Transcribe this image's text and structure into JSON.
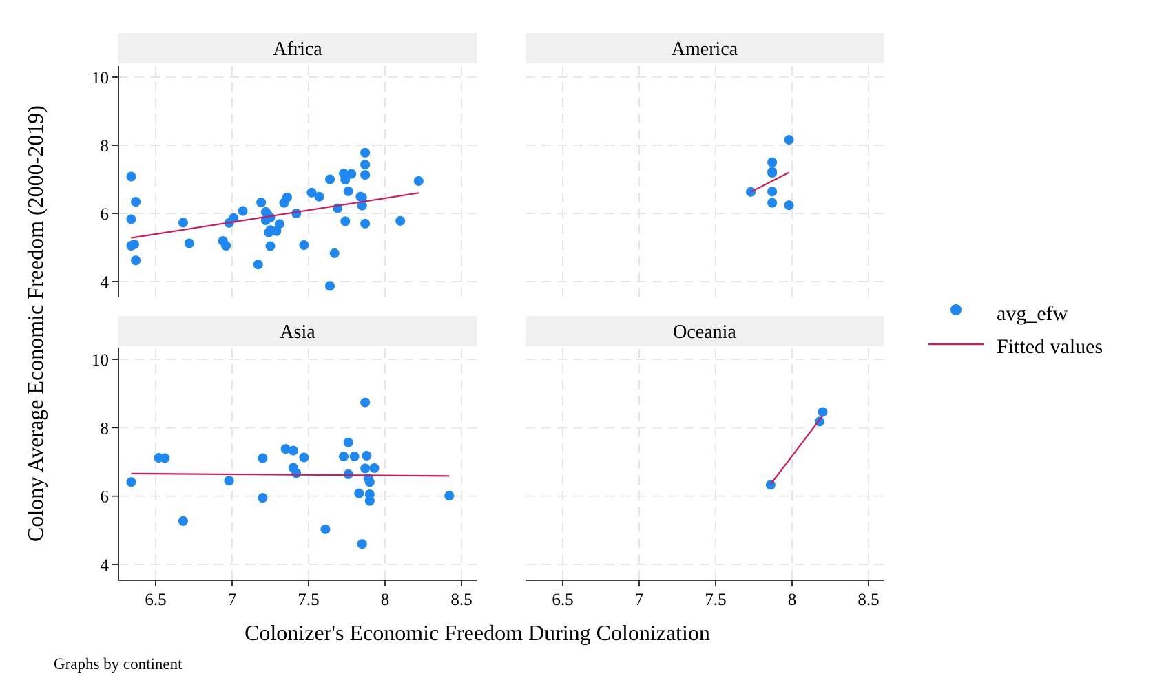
{
  "figure": {
    "xlabel": "Colonizer's Economic Freedom During Colonization",
    "ylabel": "Colony Average Economic Freedom (2000-2019)",
    "note": "Graphs by continent"
  },
  "colors": {
    "points": "#1e88f0",
    "fit": "#d0195a",
    "strip": "#f0f0f0",
    "grid": "#e6e6e6"
  },
  "chart_data": {
    "type": "scatter",
    "x_ticks": [
      6.5,
      7,
      7.5,
      8,
      8.5
    ],
    "x_tick_labels": [
      "6.5",
      "7",
      "7.5",
      "8",
      "8.5"
    ],
    "y_ticks": [
      4,
      6,
      8,
      10
    ],
    "y_tick_labels": [
      "4",
      "6",
      "8",
      "10"
    ],
    "xlim": [
      6.25,
      8.6
    ],
    "ylim": [
      3.5,
      10.4
    ],
    "legend": {
      "position": "right",
      "entries": [
        "avg_efw",
        "Fitted values"
      ]
    },
    "grid": true,
    "panels": [
      {
        "title": "Africa",
        "points": [
          [
            6.34,
            7.08
          ],
          [
            6.34,
            5.83
          ],
          [
            6.37,
            6.34
          ],
          [
            6.34,
            5.05
          ],
          [
            6.36,
            5.09
          ],
          [
            6.37,
            4.62
          ],
          [
            6.68,
            5.73
          ],
          [
            6.72,
            5.12
          ],
          [
            6.94,
            5.19
          ],
          [
            6.96,
            5.05
          ],
          [
            6.98,
            5.72
          ],
          [
            7.01,
            5.86
          ],
          [
            7.07,
            6.07
          ],
          [
            7.17,
            4.5
          ],
          [
            7.19,
            6.32
          ],
          [
            7.22,
            6.04
          ],
          [
            7.22,
            5.8
          ],
          [
            7.23,
            5.98
          ],
          [
            7.24,
            5.44
          ],
          [
            7.25,
            5.51
          ],
          [
            7.25,
            5.04
          ],
          [
            7.25,
            5.88
          ],
          [
            7.29,
            5.48
          ],
          [
            7.31,
            5.69
          ],
          [
            7.34,
            6.31
          ],
          [
            7.36,
            6.47
          ],
          [
            7.42,
            6.0
          ],
          [
            7.47,
            5.07
          ],
          [
            7.52,
            6.61
          ],
          [
            7.57,
            6.49
          ],
          [
            7.64,
            7.0
          ],
          [
            7.64,
            3.87
          ],
          [
            7.67,
            4.83
          ],
          [
            7.69,
            6.15
          ],
          [
            7.73,
            7.17
          ],
          [
            7.74,
            6.99
          ],
          [
            7.74,
            5.77
          ],
          [
            7.76,
            6.65
          ],
          [
            7.78,
            7.16
          ],
          [
            7.84,
            6.49
          ],
          [
            7.85,
            6.47
          ],
          [
            7.85,
            6.23
          ],
          [
            7.87,
            7.78
          ],
          [
            7.87,
            7.43
          ],
          [
            7.87,
            7.13
          ],
          [
            7.87,
            5.7
          ],
          [
            8.1,
            5.78
          ],
          [
            8.22,
            6.95
          ]
        ],
        "fit": {
          "x": [
            6.34,
            8.22
          ],
          "y": [
            5.28,
            6.6
          ]
        }
      },
      {
        "title": "America",
        "points": [
          [
            7.73,
            6.63
          ],
          [
            7.87,
            7.5
          ],
          [
            7.87,
            7.22
          ],
          [
            7.87,
            7.19
          ],
          [
            7.87,
            6.64
          ],
          [
            7.87,
            6.31
          ],
          [
            7.98,
            8.16
          ],
          [
            7.98,
            6.24
          ]
        ],
        "fit": {
          "x": [
            7.73,
            7.98
          ],
          "y": [
            6.63,
            7.2
          ]
        }
      },
      {
        "title": "Asia",
        "points": [
          [
            6.34,
            6.41
          ],
          [
            6.52,
            7.12
          ],
          [
            6.56,
            7.11
          ],
          [
            6.68,
            5.27
          ],
          [
            6.98,
            6.45
          ],
          [
            7.2,
            7.11
          ],
          [
            7.2,
            5.95
          ],
          [
            7.35,
            7.38
          ],
          [
            7.4,
            7.33
          ],
          [
            7.4,
            6.83
          ],
          [
            7.42,
            6.67
          ],
          [
            7.47,
            7.13
          ],
          [
            7.61,
            5.03
          ],
          [
            7.73,
            7.16
          ],
          [
            7.76,
            7.57
          ],
          [
            7.76,
            6.64
          ],
          [
            7.8,
            7.16
          ],
          [
            7.83,
            6.08
          ],
          [
            7.85,
            4.6
          ],
          [
            7.87,
            8.74
          ],
          [
            7.87,
            6.81
          ],
          [
            7.88,
            7.18
          ],
          [
            7.89,
            6.52
          ],
          [
            7.9,
            6.41
          ],
          [
            7.9,
            6.05
          ],
          [
            7.9,
            5.86
          ],
          [
            7.93,
            6.82
          ],
          [
            8.42,
            6.01
          ]
        ],
        "fit": {
          "x": [
            6.34,
            8.42
          ],
          "y": [
            6.66,
            6.59
          ]
        }
      },
      {
        "title": "Oceania",
        "points": [
          [
            7.86,
            6.33
          ],
          [
            8.18,
            8.18
          ],
          [
            8.2,
            8.46
          ]
        ],
        "fit": {
          "x": [
            7.86,
            8.2
          ],
          "y": [
            6.35,
            8.35
          ]
        }
      }
    ]
  }
}
